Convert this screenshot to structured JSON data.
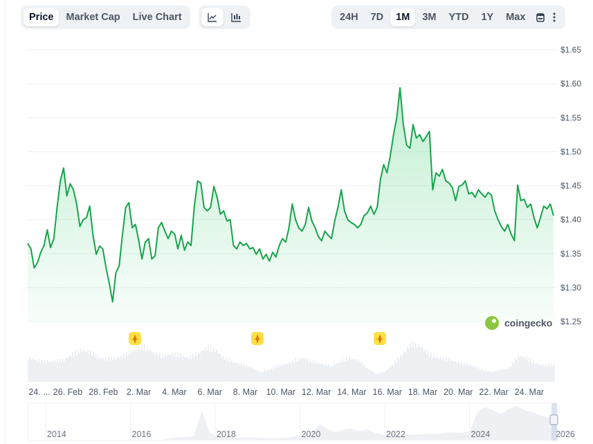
{
  "toolbar": {
    "view_tabs": [
      {
        "label": "Price",
        "active": true
      },
      {
        "label": "Market Cap",
        "active": false
      },
      {
        "label": "Live Chart",
        "active": false
      }
    ],
    "chart_type_icons": [
      "line-chart-icon",
      "candlestick-chart-icon"
    ],
    "ranges": [
      {
        "label": "24H",
        "active": false
      },
      {
        "label": "7D",
        "active": false
      },
      {
        "label": "1M",
        "active": true
      },
      {
        "label": "3M",
        "active": false
      },
      {
        "label": "YTD",
        "active": false
      },
      {
        "label": "1Y",
        "active": false
      },
      {
        "label": "Max",
        "active": false
      }
    ],
    "calendar_icon": "calendar-icon",
    "more_icon": "more-vertical-icon"
  },
  "watermark": "coingecko",
  "colors": {
    "line": "#16a34a",
    "fill": "#22c55e",
    "volume": "#e9ecf0",
    "event": "#fcd34d"
  },
  "chart_data": {
    "type": "area",
    "title": "",
    "xlabel": "",
    "ylabel": "",
    "x_range": [
      "Feb 23 18:00",
      "Mar 25 08:00"
    ],
    "x_ticks": [
      "24. ...",
      "26. Feb",
      "28. Feb",
      "2. Mar",
      "4. Mar",
      "6. Mar",
      "8. Mar",
      "10. Mar",
      "12. Mar",
      "14. Mar",
      "16. Mar",
      "18. Mar",
      "20. Mar",
      "22. Mar",
      "24. Mar"
    ],
    "y_ticks": [
      "$1.25",
      "$1.30",
      "$1.35",
      "$1.40",
      "$1.45",
      "$1.50",
      "$1.55",
      "$1.60",
      "$1.65"
    ],
    "ylim": [
      1.25,
      1.65
    ],
    "grid": true,
    "prices": [
      1.365,
      1.357,
      1.329,
      1.337,
      1.352,
      1.362,
      1.385,
      1.359,
      1.372,
      1.418,
      1.457,
      1.476,
      1.435,
      1.453,
      1.444,
      1.423,
      1.39,
      1.4,
      1.403,
      1.42,
      1.377,
      1.349,
      1.361,
      1.357,
      1.329,
      1.306,
      1.279,
      1.322,
      1.332,
      1.377,
      1.418,
      1.425,
      1.388,
      1.393,
      1.369,
      1.342,
      1.367,
      1.372,
      1.342,
      1.347,
      1.388,
      1.396,
      1.383,
      1.372,
      1.383,
      1.379,
      1.357,
      1.377,
      1.355,
      1.367,
      1.362,
      1.418,
      1.457,
      1.454,
      1.418,
      1.413,
      1.418,
      1.449,
      1.433,
      1.408,
      1.413,
      1.398,
      1.4,
      1.362,
      1.357,
      1.367,
      1.362,
      1.365,
      1.357,
      1.359,
      1.349,
      1.357,
      1.342,
      1.349,
      1.339,
      1.352,
      1.345,
      1.362,
      1.372,
      1.367,
      1.388,
      1.423,
      1.4,
      1.388,
      1.383,
      1.393,
      1.418,
      1.398,
      1.388,
      1.375,
      1.369,
      1.383,
      1.377,
      1.372,
      1.398,
      1.418,
      1.444,
      1.413,
      1.4,
      1.396,
      1.393,
      1.388,
      1.393,
      1.406,
      1.41,
      1.42,
      1.408,
      1.418,
      1.459,
      1.481,
      1.469,
      1.494,
      1.525,
      1.55,
      1.594,
      1.54,
      1.51,
      1.505,
      1.54,
      1.52,
      1.525,
      1.515,
      1.522,
      1.53,
      1.444,
      1.469,
      1.464,
      1.474,
      1.457,
      1.454,
      1.447,
      1.428,
      1.449,
      1.451,
      1.457,
      1.438,
      1.44,
      1.433,
      1.444,
      1.438,
      1.433,
      1.44,
      1.436,
      1.413,
      1.4,
      1.39,
      1.383,
      1.393,
      1.379,
      1.369,
      1.451,
      1.428,
      1.43,
      1.418,
      1.423,
      1.403,
      1.388,
      1.403,
      1.42,
      1.416,
      1.423,
      1.406
    ],
    "volume_relative": [
      0.6,
      0.55,
      0.5,
      0.52,
      0.55,
      0.7,
      0.8,
      0.75,
      0.6,
      0.58,
      0.6,
      0.7,
      0.8,
      0.9,
      0.75,
      0.65,
      0.7,
      0.68,
      0.6,
      0.72,
      0.85,
      0.8,
      0.6,
      0.5,
      0.45,
      0.35,
      0.25,
      0.3,
      0.4,
      0.45,
      0.55,
      0.6,
      0.5,
      0.45,
      0.4,
      0.5,
      0.6,
      0.55,
      0.35,
      0.2,
      0.25,
      0.45,
      0.7,
      0.95,
      0.9,
      0.7,
      0.6,
      0.58,
      0.5,
      0.45,
      0.4,
      0.3,
      0.25,
      0.3,
      0.35,
      0.65,
      0.6,
      0.45,
      0.42,
      0.43
    ],
    "events_at": [
      "Mar 1",
      "Mar 8",
      "Mar 16"
    ]
  },
  "navigator": {
    "year_labels": [
      "2014",
      "2016",
      "2018",
      "2020",
      "2022",
      "2024",
      "2026"
    ],
    "history_relative": [
      0,
      0,
      0,
      0,
      0,
      0,
      0,
      0,
      0,
      0,
      0,
      0,
      0,
      0,
      0,
      0,
      0,
      0,
      0.05,
      0.07,
      0.08,
      0.1,
      0.85,
      0.2,
      0.1,
      0.08,
      0.07,
      0.06,
      0.07,
      0.06,
      0.05,
      0.05,
      0.05,
      0.06,
      0.12,
      0.08,
      0.2,
      0.45,
      0.3,
      0.22,
      0.3,
      0.32,
      0.25,
      0.3,
      0.2,
      0.15,
      0.18,
      0.17,
      0.16,
      0.15,
      0.16,
      0.18,
      0.17,
      0.2,
      0.22,
      0.2,
      0.25,
      0.8,
      0.95,
      0.85,
      0.75,
      0.9,
      0.98,
      0.85,
      0.8,
      0.7,
      0.65,
      0.55
    ]
  }
}
